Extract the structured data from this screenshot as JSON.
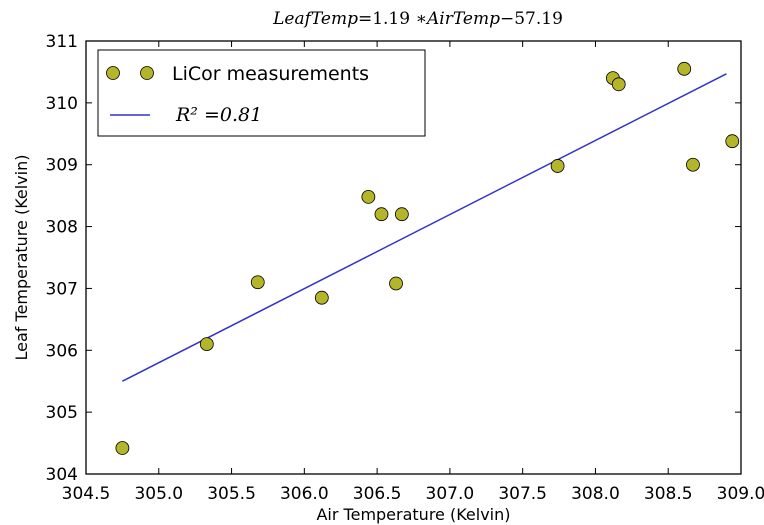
{
  "chart_data": {
    "type": "scatter",
    "title": "LeafTemp=1.19 ∗AirTemp−57.19",
    "xlabel": "Air Temperature (Kelvin)",
    "ylabel": "Leaf Temperature (Kelvin)",
    "xlim": [
      304.5,
      309.0
    ],
    "ylim": [
      304,
      311
    ],
    "x_ticks": [
      "304.5",
      "305.0",
      "305.5",
      "306.0",
      "306.5",
      "307.0",
      "307.5",
      "308.0",
      "308.5",
      "309.0"
    ],
    "y_ticks": [
      "304",
      "305",
      "306",
      "307",
      "308",
      "309",
      "310",
      "311"
    ],
    "grid": false,
    "legend_position": "top-left",
    "series": [
      {
        "name": "LiCor measurements",
        "kind": "markers",
        "color": "#b5b52a",
        "points": [
          {
            "x": 304.75,
            "y": 304.42
          },
          {
            "x": 305.33,
            "y": 306.1
          },
          {
            "x": 305.68,
            "y": 307.1
          },
          {
            "x": 306.12,
            "y": 306.85
          },
          {
            "x": 306.44,
            "y": 308.48
          },
          {
            "x": 306.53,
            "y": 308.2
          },
          {
            "x": 306.63,
            "y": 307.08
          },
          {
            "x": 306.67,
            "y": 308.2
          },
          {
            "x": 307.74,
            "y": 308.98
          },
          {
            "x": 308.12,
            "y": 310.4
          },
          {
            "x": 308.16,
            "y": 310.3
          },
          {
            "x": 308.61,
            "y": 310.55
          },
          {
            "x": 308.67,
            "y": 309.0
          },
          {
            "x": 308.94,
            "y": 309.38
          }
        ]
      },
      {
        "name": "R² =0.81",
        "kind": "line",
        "color": "#3333cc",
        "points": [
          {
            "x": 304.75,
            "y": 305.5
          },
          {
            "x": 308.9,
            "y": 310.47
          }
        ]
      }
    ]
  }
}
